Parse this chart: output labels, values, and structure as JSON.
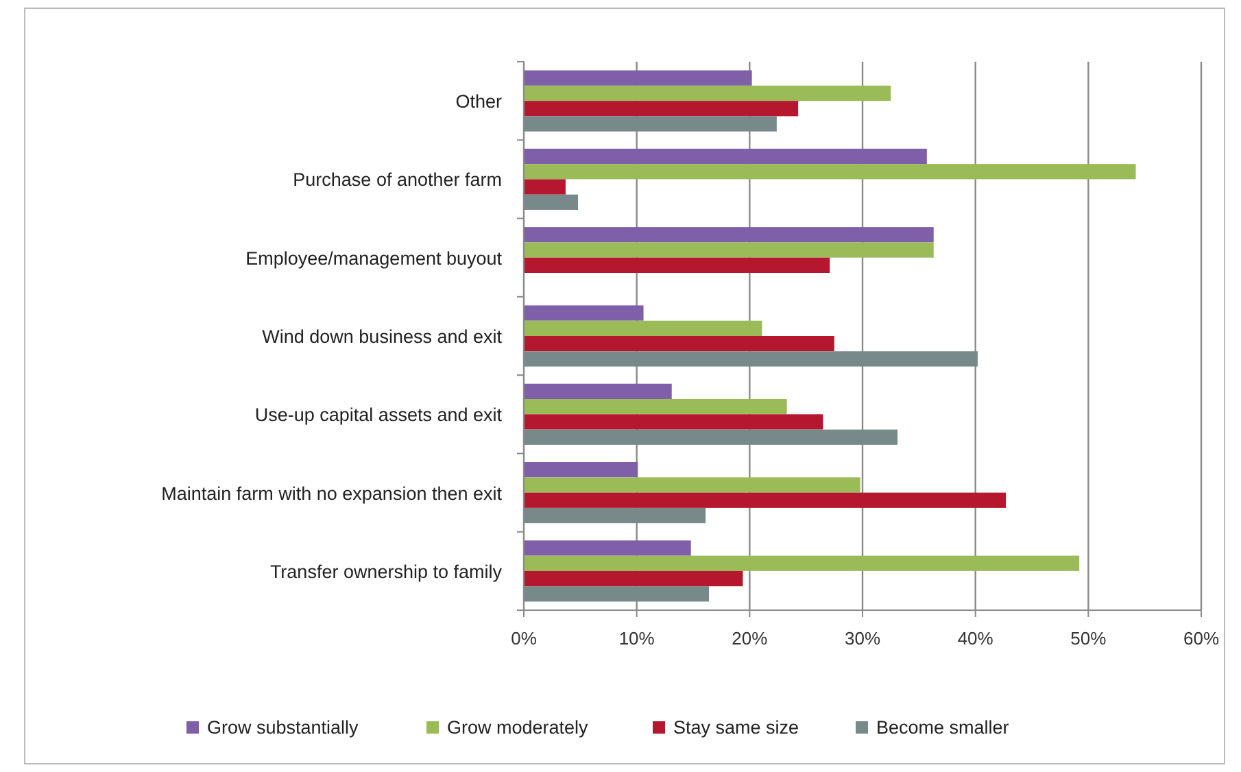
{
  "chart_data": {
    "type": "bar",
    "orientation": "horizontal",
    "categories": [
      "Other",
      "Purchase of another farm",
      "Employee/management buyout",
      "Wind down business and exit",
      "Use-up capital assets and exit",
      "Maintain farm with no expansion then exit",
      "Transfer ownership to family"
    ],
    "series": [
      {
        "name": "Grow substantially",
        "color": "#7f5fa8",
        "values": [
          20.2,
          35.7,
          36.3,
          10.6,
          13.1,
          10.1,
          14.8
        ]
      },
      {
        "name": "Grow moderately",
        "color": "#9bbb59",
        "values": [
          32.5,
          54.2,
          36.3,
          21.1,
          23.3,
          29.8,
          49.2
        ]
      },
      {
        "name": "Stay same size",
        "color": "#b5172e",
        "values": [
          24.3,
          3.7,
          27.1,
          27.5,
          26.5,
          42.7,
          19.4
        ]
      },
      {
        "name": "Become smaller",
        "color": "#78898a",
        "values": [
          22.4,
          4.8,
          0,
          40.2,
          33.1,
          16.1,
          16.4
        ]
      }
    ],
    "xlim": [
      0,
      60
    ],
    "xticks": [
      {
        "value": 0,
        "label": "0%"
      },
      {
        "value": 10,
        "label": "10%"
      },
      {
        "value": 20,
        "label": "20%"
      },
      {
        "value": 30,
        "label": "30%"
      },
      {
        "value": 40,
        "label": "40%"
      },
      {
        "value": 50,
        "label": "50%"
      },
      {
        "value": 60,
        "label": "60%"
      }
    ],
    "grid": "x",
    "legend": "bottom"
  }
}
